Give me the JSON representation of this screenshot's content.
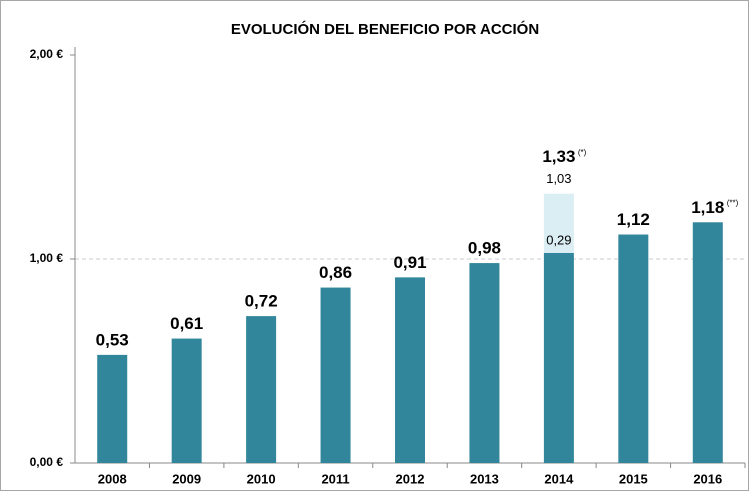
{
  "chart_data": {
    "type": "bar",
    "title": "EVOLUCIÓN DEL BENEFICIO POR ACCIÓN",
    "categories": [
      "2008",
      "2009",
      "2010",
      "2011",
      "2012",
      "2013",
      "2014",
      "2015",
      "2016"
    ],
    "series": [
      {
        "color": "#31869b",
        "values": [
          0.53,
          0.61,
          0.72,
          0.86,
          0.91,
          0.98,
          1.03,
          1.12,
          1.18
        ],
        "value_labels": [
          "0,53",
          "0,61",
          "0,72",
          "0,86",
          "0,91",
          "0,98",
          "1,03",
          "1,12",
          "1,18"
        ]
      },
      {
        "color": "#dbeef4",
        "values": [
          null,
          null,
          null,
          null,
          null,
          null,
          0.29,
          null,
          null
        ],
        "value_labels": [
          null,
          null,
          null,
          null,
          null,
          null,
          "0,29",
          null,
          null
        ]
      }
    ],
    "totals": [
      null,
      null,
      null,
      null,
      null,
      null,
      {
        "value": 1.33,
        "label": "1,33"
      },
      null,
      null
    ],
    "notes": [
      null,
      null,
      null,
      null,
      null,
      null,
      "(*)",
      null,
      "(**)"
    ],
    "ylim": [
      0,
      2
    ],
    "yticks": [
      {
        "value": 0,
        "label": "0,00 €"
      },
      {
        "value": 1,
        "label": "1,00 €"
      },
      {
        "value": 2,
        "label": "2,00 €"
      }
    ],
    "grid": true
  }
}
